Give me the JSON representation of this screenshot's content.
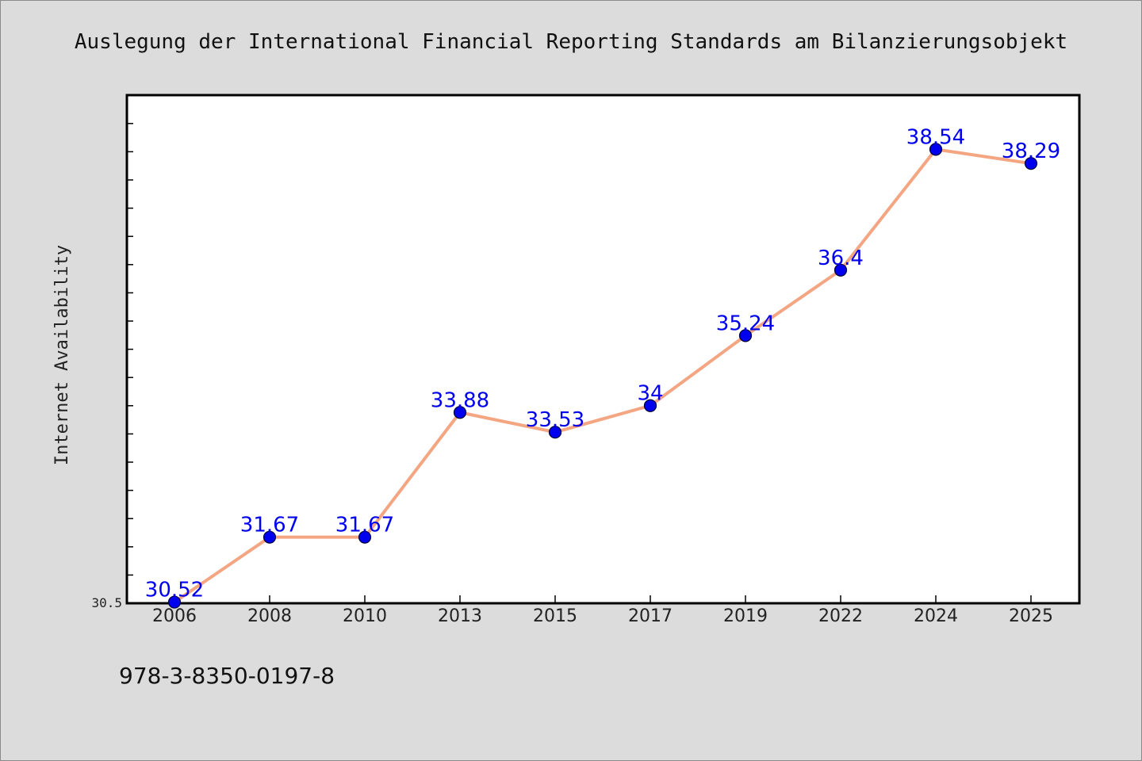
{
  "chart_data": {
    "type": "line",
    "title": "Auslegung der International Financial Reporting Standards am Bilanzierungsobjekt",
    "xlabel": "",
    "ylabel": "Internet Availability",
    "categories": [
      "2006",
      "2008",
      "2010",
      "2013",
      "2015",
      "2017",
      "2019",
      "2022",
      "2024",
      "2025"
    ],
    "series": [
      {
        "values": [
          30.52,
          31.67,
          31.67,
          33.88,
          33.53,
          34,
          35.24,
          36.4,
          38.54,
          38.29
        ],
        "labels": [
          "30.52",
          "31.67",
          "31.67",
          "33.88",
          "33.53",
          "34",
          "35.24",
          "36.4",
          "38.54",
          "38.29"
        ]
      }
    ],
    "ylim": [
      30.5,
      39.5
    ],
    "ytick_labels": [
      "30.5"
    ],
    "grid": false,
    "legend": "none",
    "colors": {
      "line": "#f4a582",
      "marker": "#0000ee",
      "label": "#0000ee",
      "plot_background": "#ffffff",
      "page_background": "#dcdcdc"
    }
  },
  "footer": {
    "isbn": "978-3-8350-0197-8"
  }
}
